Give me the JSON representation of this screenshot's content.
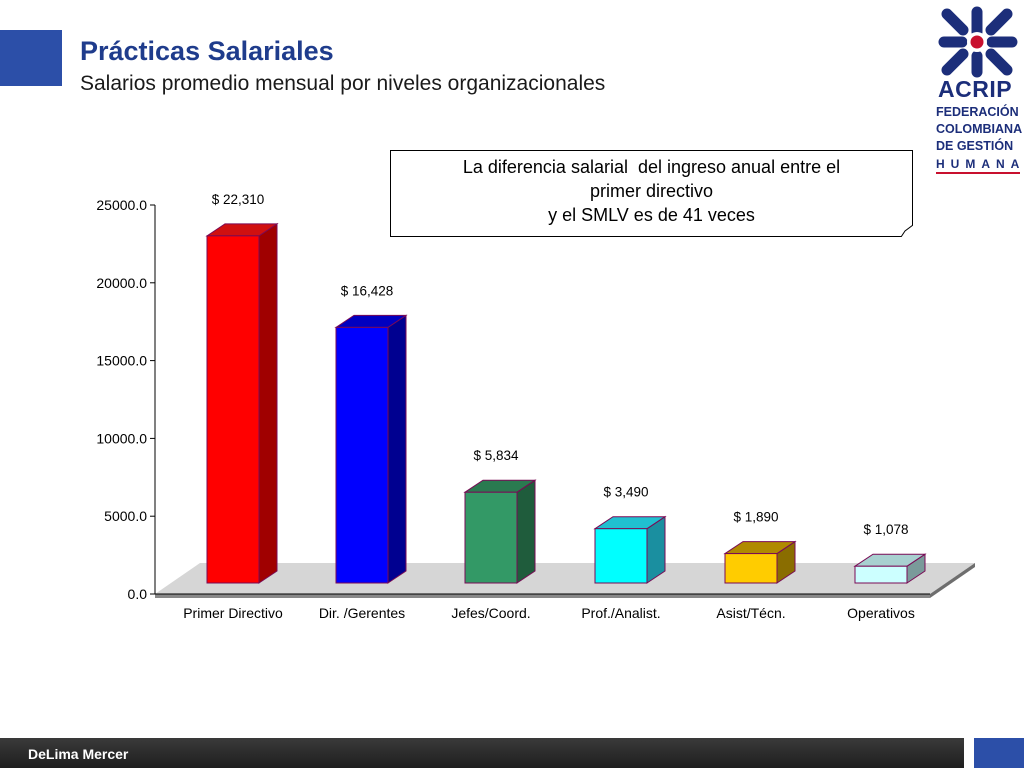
{
  "header": {
    "title": "Prácticas Salariales",
    "subtitle": "Salarios promedio mensual por niveles organizacionales"
  },
  "logo": {
    "name": "ACRIP",
    "lines": [
      "FEDERACIÓN",
      "COLOMBIANA",
      "DE GESTIÓN"
    ],
    "letters": "HUMANA",
    "colors": {
      "blue": "#1c2e7a",
      "red": "#c8102e"
    }
  },
  "callout": {
    "lines": [
      "La diferencia salarial  del ingreso anual entre el",
      "primer directivo",
      "y el SMLV es de 41 veces"
    ]
  },
  "footer": {
    "text": "DeLima Mercer"
  },
  "chart_data": {
    "type": "bar",
    "title": "",
    "xlabel": "",
    "ylabel": "",
    "ylim": [
      0,
      25000
    ],
    "yticks": [
      0,
      5000,
      10000,
      15000,
      20000,
      25000
    ],
    "ytick_labels": [
      "0.0",
      "5000.0",
      "10000.0",
      "15000.0",
      "20000.0",
      "25000.0"
    ],
    "categories": [
      "Primer Directivo",
      "Dir. /Gerentes",
      "Jefes/Coord.",
      "Prof./Analist.",
      "Asist/Técn.",
      "Operativos"
    ],
    "values": [
      22310,
      16428,
      5834,
      3490,
      1890,
      1078
    ],
    "data_labels": [
      "$ 22,310",
      "$ 16,428",
      "$ 5,834",
      "$ 3,490",
      "$ 1,890",
      "$ 1,078"
    ],
    "colors": [
      "#ff0000",
      "#0000ff",
      "#339966",
      "#00ffff",
      "#ffcc00",
      "#ccffff"
    ],
    "side_colors": [
      "#a00000",
      "#000090",
      "#1f5c3c",
      "#1a8fa0",
      "#8a6d00",
      "#7a9a9a"
    ],
    "top_colors": [
      "#d01010",
      "#0000c0",
      "#2a7a50",
      "#20c0d0",
      "#b08a00",
      "#a8d0d0"
    ],
    "grid": false,
    "legend": "none",
    "style": "3d"
  }
}
